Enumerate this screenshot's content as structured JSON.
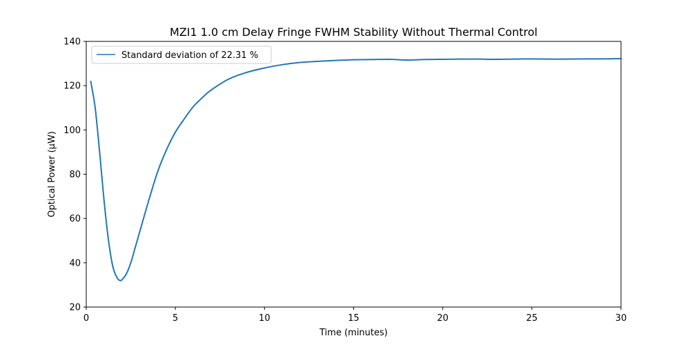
{
  "chart_data": {
    "type": "line",
    "title": "MZI1 1.0 cm Delay Fringe FWHM Stability Without Thermal Control",
    "xlabel": "Time (minutes)",
    "ylabel": "Optical Power (µW)",
    "xlim": [
      0,
      30
    ],
    "ylim": [
      20,
      140
    ],
    "xticks": [
      0,
      5,
      10,
      15,
      20,
      25,
      30
    ],
    "yticks": [
      20,
      40,
      60,
      80,
      100,
      120,
      140
    ],
    "grid": false,
    "legend_position": "top-left",
    "series": [
      {
        "name": "Standard deviation of 22.31 %",
        "color": "#1f77b4",
        "x": [
          0.25,
          0.5,
          0.75,
          1.0,
          1.25,
          1.5,
          1.75,
          1.9,
          2.0,
          2.25,
          2.5,
          2.75,
          3.0,
          3.5,
          4.0,
          4.5,
          5.0,
          5.5,
          6.0,
          6.5,
          7.0,
          8.0,
          9.0,
          10.0,
          11.0,
          12.0,
          13.0,
          14.0,
          15.0,
          16.0,
          17.0,
          18.0,
          19.0,
          20.0,
          21.0,
          22.0,
          23.0,
          24.0,
          25.0,
          26.0,
          27.0,
          28.0,
          29.0,
          30.0
        ],
        "y": [
          122,
          110,
          90,
          68,
          50,
          38,
          33,
          32,
          32.3,
          35,
          40,
          47,
          54,
          68,
          81,
          91,
          99,
          105,
          110.5,
          114.5,
          118,
          123,
          126,
          128,
          129.5,
          130.5,
          131,
          131.4,
          131.7,
          131.8,
          131.9,
          131.6,
          131.8,
          131.9,
          132,
          132,
          131.9,
          132,
          132.1,
          132,
          132,
          132.1,
          132.1,
          132.2
        ]
      }
    ]
  }
}
